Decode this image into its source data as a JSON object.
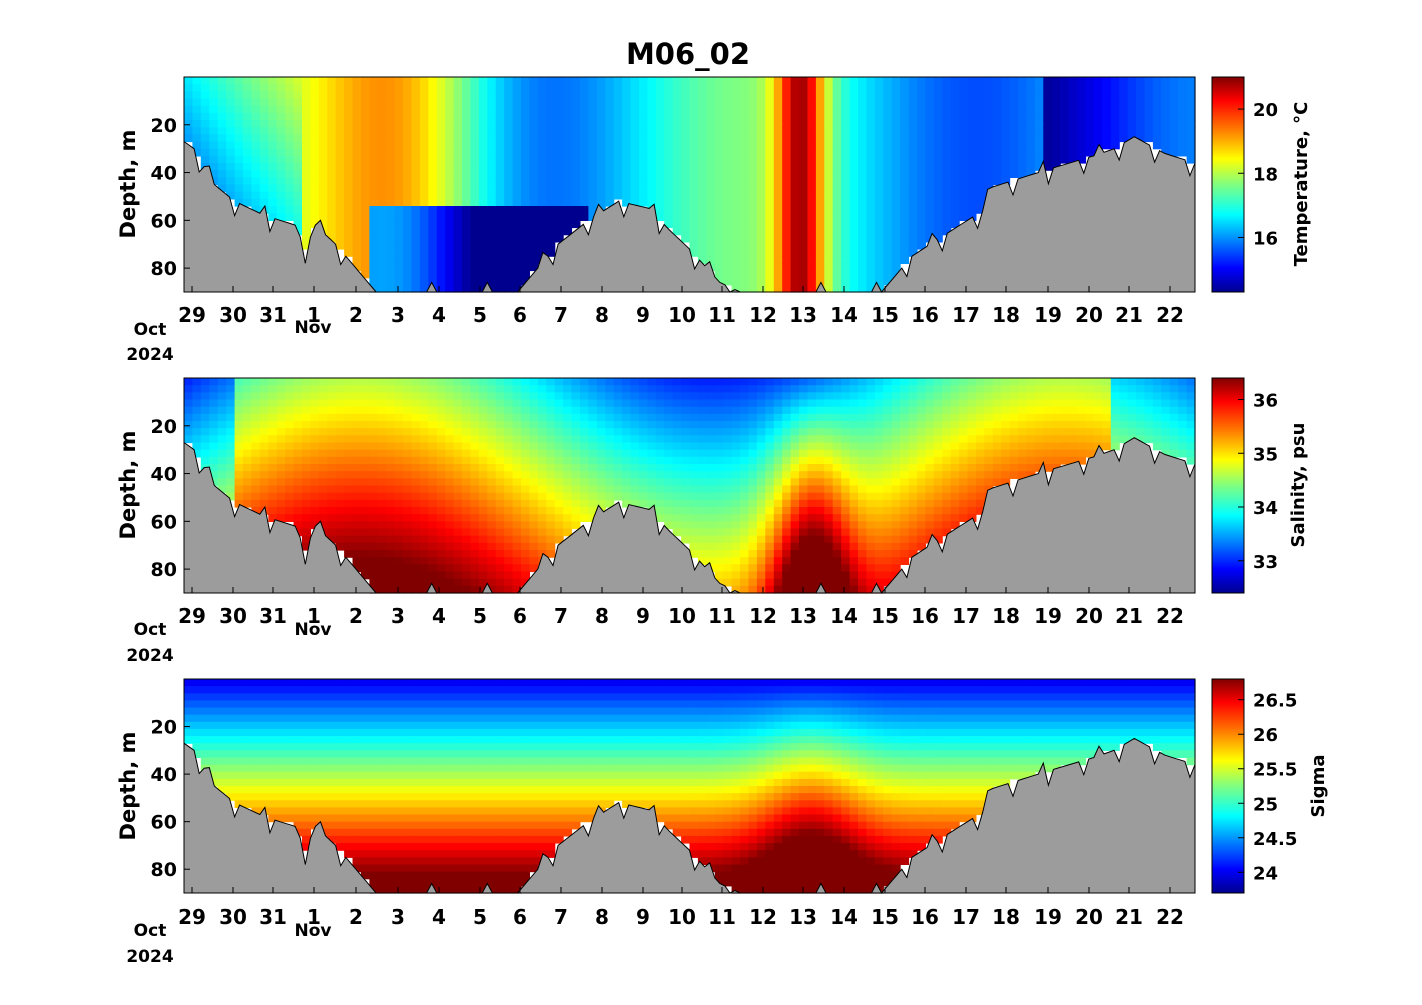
{
  "title": "M06_02",
  "x_axis": {
    "day_ticks": [
      "29",
      "30",
      "31",
      "1",
      "2",
      "3",
      "4",
      "5",
      "6",
      "7",
      "8",
      "9",
      "10",
      "11",
      "12",
      "13",
      "14",
      "15",
      "16",
      "17",
      "18",
      "19",
      "20",
      "21",
      "22"
    ],
    "month_labels": [
      "Oct",
      "Nov"
    ],
    "year_label": "2024"
  },
  "chart_data": [
    {
      "type": "heatmap",
      "title": "M06_02",
      "ylabel": "Depth, m",
      "colorbar_label": "Temperature, °C",
      "y_ticks": [
        "20",
        "40",
        "60",
        "80"
      ],
      "ylim": [
        90,
        0
      ],
      "colorbar_ticks": [
        "16",
        "18",
        "20"
      ],
      "clim": [
        14.3,
        21.0
      ],
      "colormap": "jet",
      "x_range": [
        "2024-10-28 19:00",
        "2024-11-22 14:00"
      ]
    },
    {
      "type": "heatmap",
      "ylabel": "Depth, m",
      "colorbar_label": "Salinity, psu",
      "y_ticks": [
        "20",
        "40",
        "60",
        "80"
      ],
      "ylim": [
        90,
        0
      ],
      "colorbar_ticks": [
        "33",
        "34",
        "35",
        "36"
      ],
      "clim": [
        32.4,
        36.4
      ],
      "colormap": "jet",
      "x_range": [
        "2024-10-28 19:00",
        "2024-11-22 14:00"
      ]
    },
    {
      "type": "heatmap",
      "ylabel": "Depth, m",
      "colorbar_label": "Sigma",
      "y_ticks": [
        "20",
        "40",
        "60",
        "80"
      ],
      "ylim": [
        90,
        0
      ],
      "colorbar_ticks": [
        "24",
        "24.5",
        "25",
        "25.5",
        "26",
        "26.5"
      ],
      "clim": [
        23.7,
        26.8
      ],
      "colormap": "jet",
      "x_range": [
        "2024-10-28 19:00",
        "2024-11-22 14:00"
      ]
    }
  ],
  "colors": {
    "seabed": "#9c9c9c",
    "jet": [
      "#00008f",
      "#0000ff",
      "#0080ff",
      "#00ffff",
      "#80ff80",
      "#ffff00",
      "#ff8000",
      "#ff0000",
      "#800000"
    ]
  }
}
